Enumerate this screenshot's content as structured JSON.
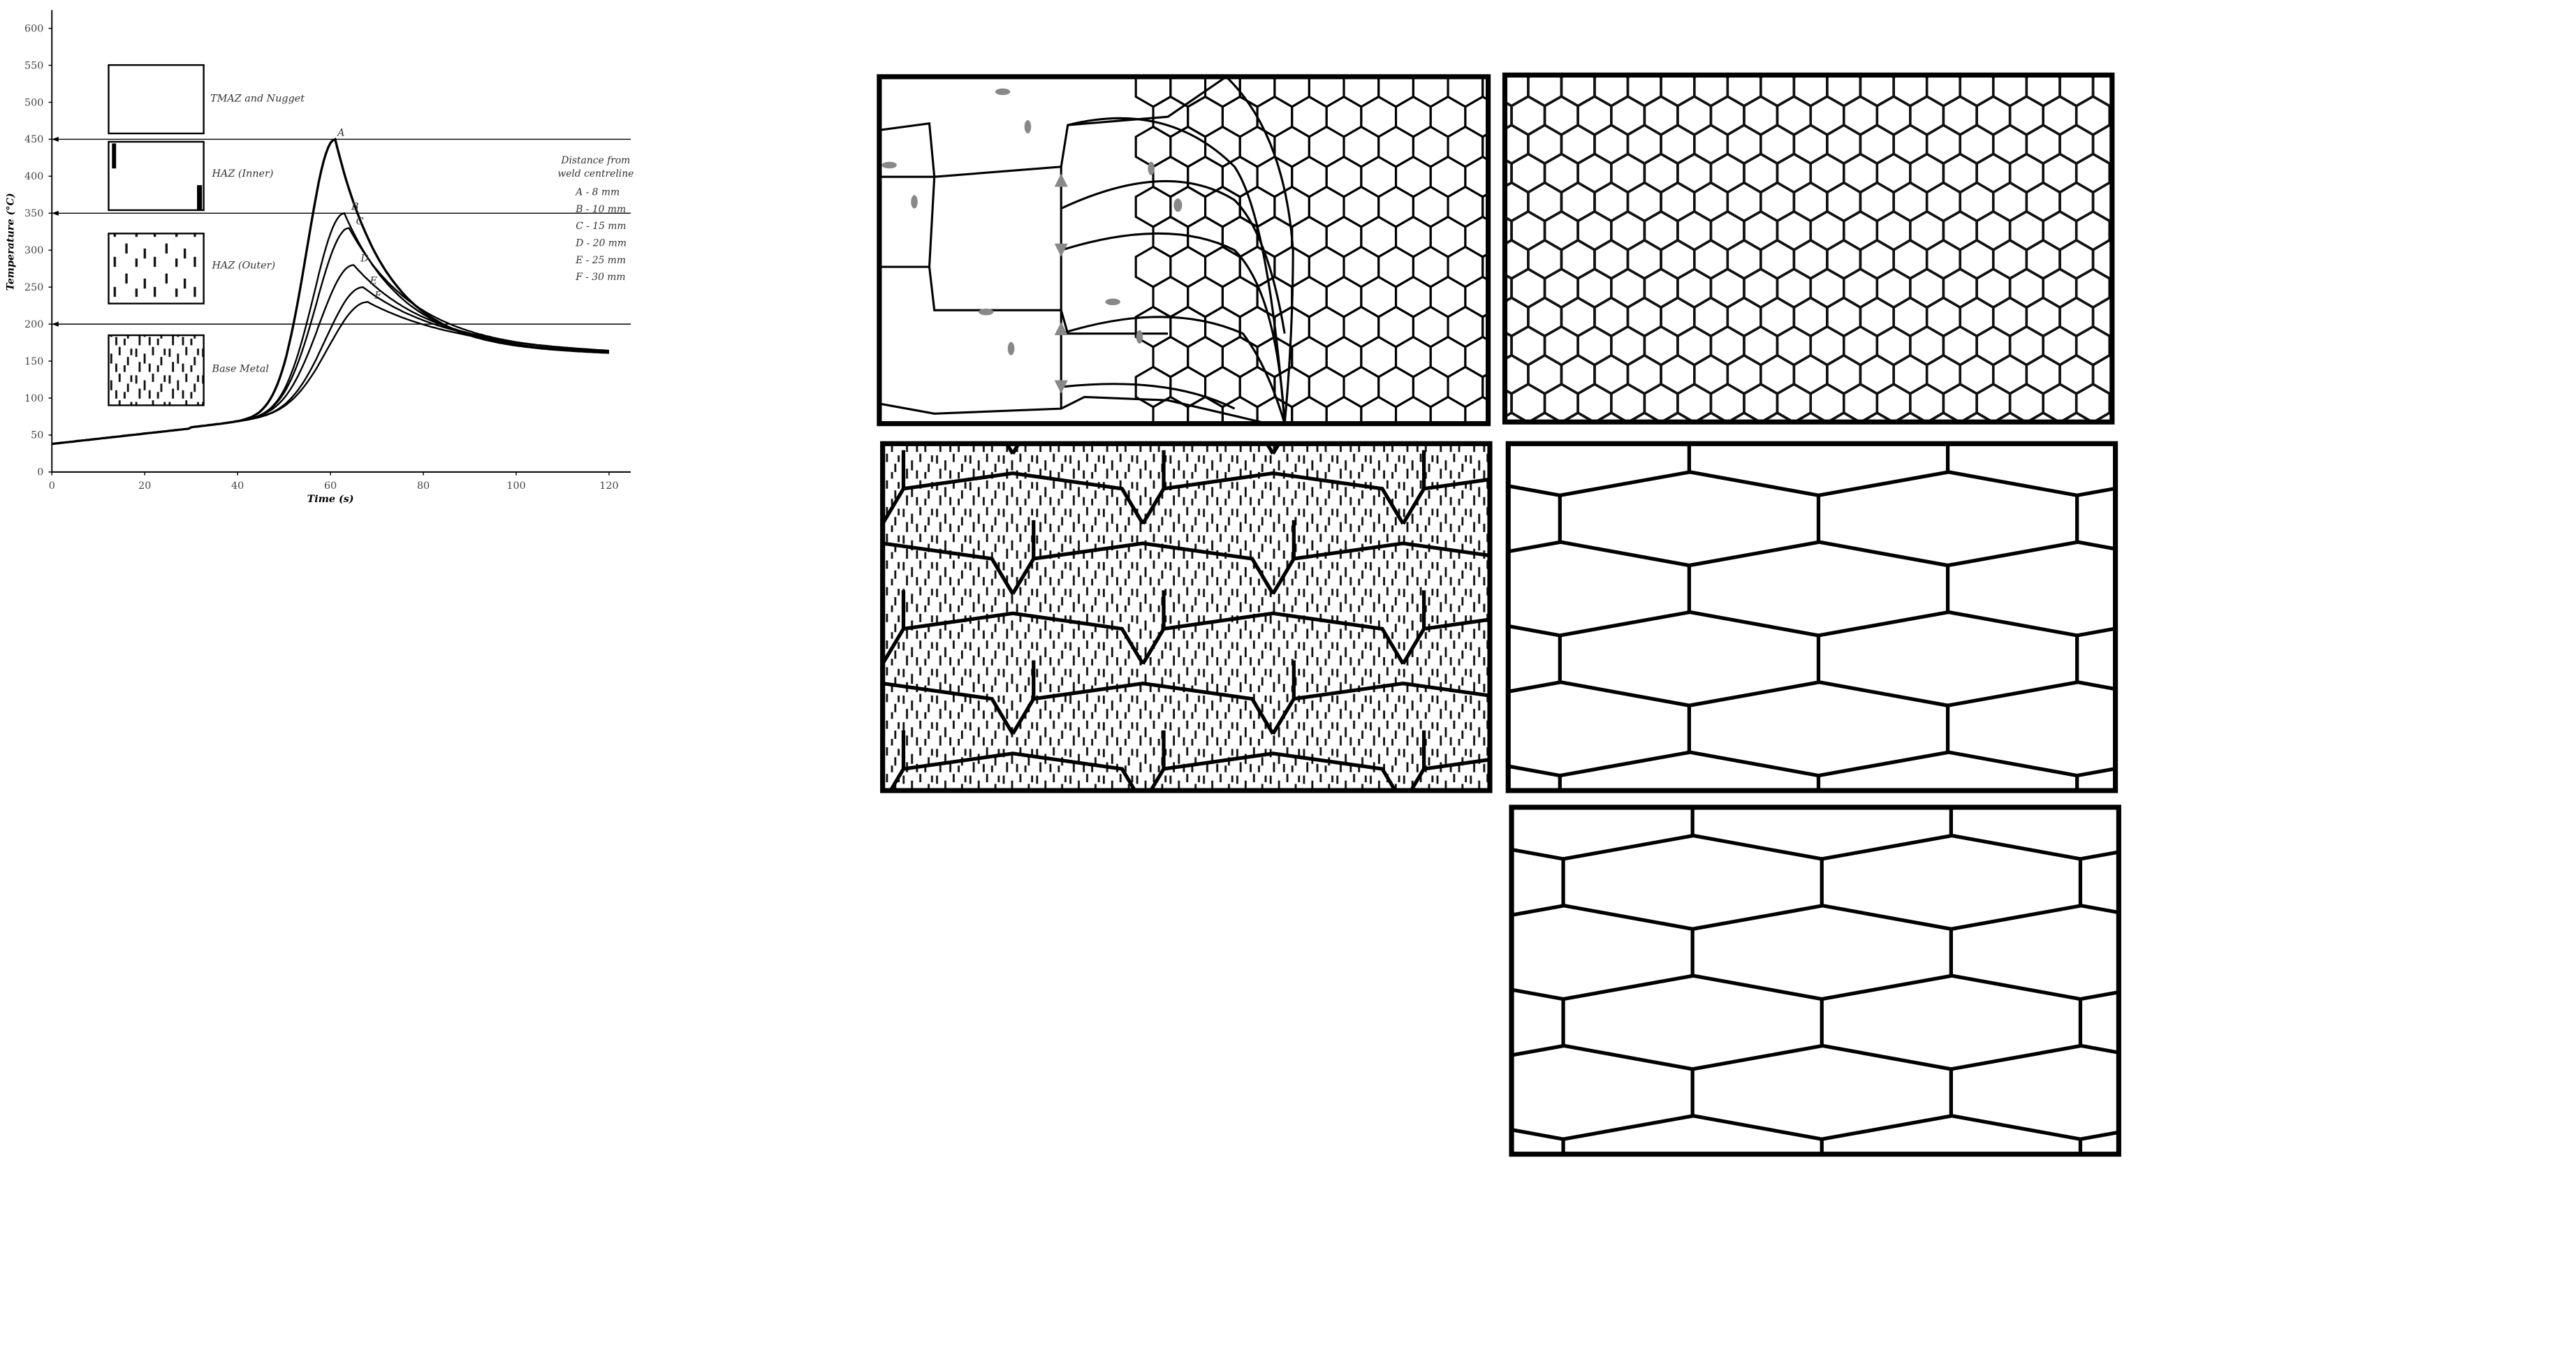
{
  "chart_data": {
    "type": "line",
    "xlabel": "Time (s)",
    "ylabel": "Temperature (°C)",
    "xlim": [
      0,
      125
    ],
    "ylim": [
      0,
      600
    ],
    "xticks": [
      0,
      20,
      40,
      60,
      80,
      100,
      120
    ],
    "yticks": [
      0,
      50,
      100,
      150,
      200,
      250,
      300,
      350,
      400,
      450,
      500,
      550,
      600
    ],
    "legend_title": "Distance from weld centreline",
    "legend_placement": "right",
    "series": [
      {
        "name": "A - 8 mm",
        "label": "A",
        "peak": 450,
        "t_peak": 61
      },
      {
        "name": "B - 10 mm",
        "label": "B",
        "peak": 350,
        "t_peak": 63
      },
      {
        "name": "C - 15 mm",
        "label": "C",
        "peak": 330,
        "t_peak": 64
      },
      {
        "name": "D - 20 mm",
        "label": "D",
        "peak": 280,
        "t_peak": 65
      },
      {
        "name": "E - 25 mm",
        "label": "E",
        "peak": 250,
        "t_peak": 67
      },
      {
        "name": "F - 30 mm",
        "label": "F",
        "peak": 230,
        "t_peak": 68
      }
    ],
    "reference_lines": [
      450,
      350,
      200
    ],
    "zones": [
      {
        "label": "TMAZ and Nugget"
      },
      {
        "label": "HAZ (Inner)"
      },
      {
        "label": "HAZ (Outer)"
      },
      {
        "label": "Base Metal"
      }
    ]
  },
  "micrographs": [
    {
      "id": "tmaz-nugget"
    },
    {
      "id": "fine-equiaxed"
    },
    {
      "id": "haz-outer-precipitates"
    },
    {
      "id": "haz-coarse-grains"
    },
    {
      "id": "base-metal-grains"
    }
  ]
}
